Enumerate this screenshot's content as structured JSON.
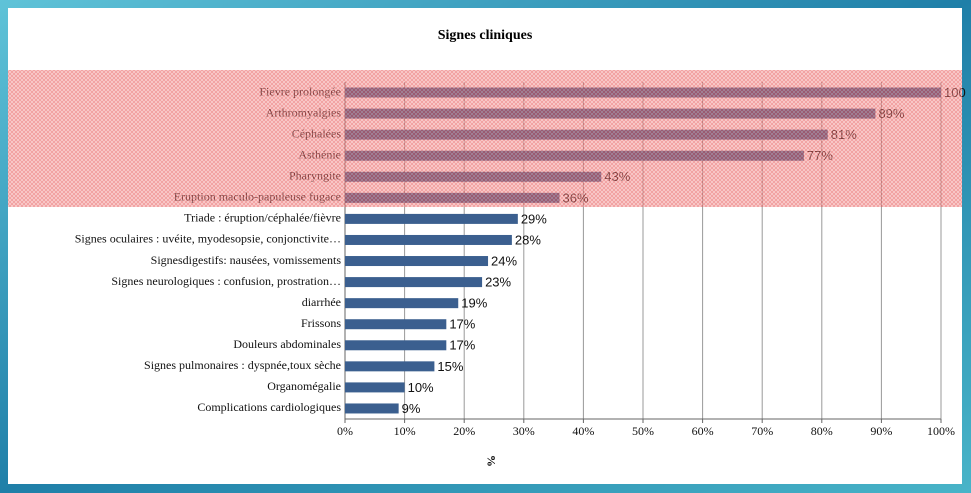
{
  "chart_data": {
    "type": "bar",
    "orientation": "horizontal",
    "title": "Signes cliniques",
    "x_label": "%",
    "categories": [
      "Fievre prolongée",
      "Arthromyalgies",
      "Céphalées",
      "Asthénie",
      "Pharyngite",
      "Eruption maculo-papuleuse fugace",
      "Triade : éruption/céphalée/fièvre",
      "Signes oculaires : uvéite, myodesopsie, conjonctivite…",
      "Signesdigestifs: nausées, vomissements",
      "Signes neurologiques : confusion, prostration…",
      "diarrhée",
      "Frissons",
      "Douleurs abdominales",
      "Signes pulmonaires : dyspnée,toux sèche",
      "Organomégalie",
      "Complications cardiologiques"
    ],
    "values": [
      100,
      89,
      81,
      77,
      43,
      36,
      29,
      28,
      24,
      23,
      19,
      17,
      17,
      15,
      10,
      9
    ],
    "value_labels": [
      "100",
      "89%",
      "81%",
      "77%",
      "43%",
      "36%",
      "29%",
      "28%",
      "24%",
      "23%",
      "19%",
      "17%",
      "17%",
      "15%",
      "10%",
      "9%"
    ],
    "color": "#3b5f8f",
    "xlim": [
      0,
      100
    ],
    "xticks": [
      {
        "value": 0,
        "label": "0%"
      },
      {
        "value": 10,
        "label": "10%"
      },
      {
        "value": 20,
        "label": "20%"
      },
      {
        "value": 30,
        "label": "30%"
      },
      {
        "value": 40,
        "label": "40%"
      },
      {
        "value": 50,
        "label": "50%"
      },
      {
        "value": 60,
        "label": "60%"
      },
      {
        "value": 70,
        "label": "70%"
      },
      {
        "value": 80,
        "label": "80%"
      },
      {
        "value": 90,
        "label": "90%"
      },
      {
        "value": 100,
        "label": "100%"
      }
    ],
    "grid": true
  }
}
